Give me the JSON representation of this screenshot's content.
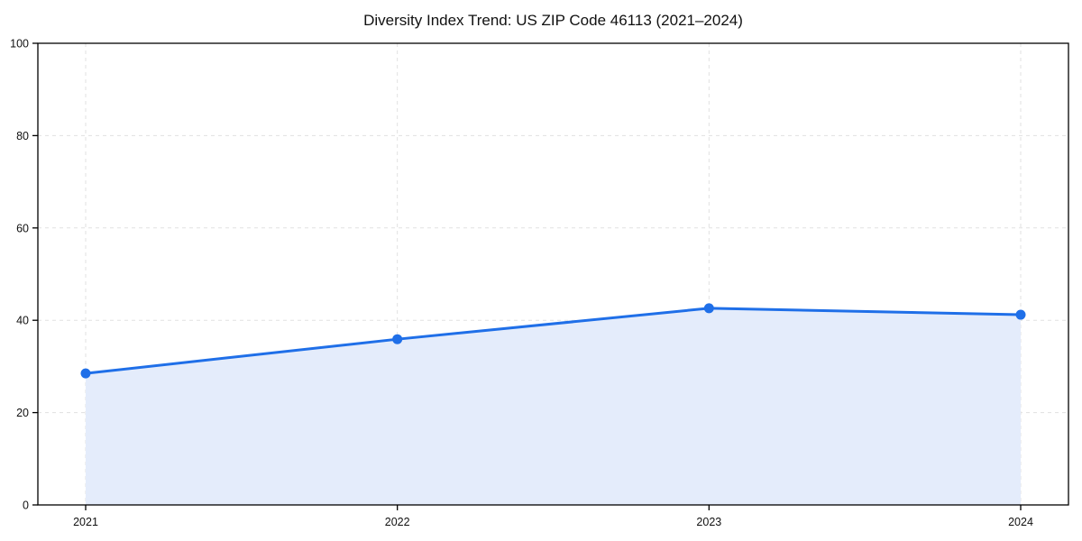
{
  "chart_data": {
    "type": "line",
    "title": "Diversity Index Trend: US ZIP Code 46113 (2021–2024)",
    "x": [
      "2021",
      "2022",
      "2023",
      "2024"
    ],
    "series": [
      {
        "name": "Diversity Index",
        "values": [
          28.5,
          35.9,
          42.6,
          41.2
        ]
      }
    ],
    "xlabel": "",
    "ylabel": "",
    "ylim": [
      0,
      100
    ],
    "yticks": [
      0,
      20,
      40,
      60,
      80,
      100
    ],
    "grid": "dashed",
    "legend_position": "none",
    "marker": "circle",
    "colors": {
      "line": "#1f6fe8",
      "fill": "#e4ecfb",
      "grid": "#e1e1e1",
      "spine": "#000000",
      "tick_text": "#111111"
    }
  }
}
